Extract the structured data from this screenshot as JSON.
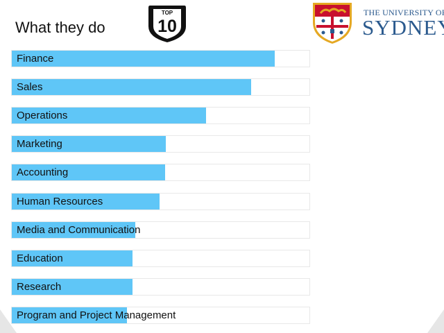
{
  "header": {
    "title": "What they do",
    "badge_top": "TOP",
    "badge_number": "10"
  },
  "logo": {
    "line1": "THE UNIVERSITY OF",
    "line2": "SYDNEY"
  },
  "colors": {
    "bar_fill": "#5fc6f7",
    "track_border": "#e8e8e8",
    "brand_blue": "#2b5a8e",
    "crest_red": "#c8102e",
    "crest_gold": "#e5a823"
  },
  "chart_data": {
    "type": "bar",
    "orientation": "horizontal",
    "title": "What they do",
    "xlim": [
      0,
      100
    ],
    "categories": [
      "Finance",
      "Sales",
      "Operations",
      "Marketing",
      "Accounting",
      "Human Resources",
      "Media and Communication",
      "Education",
      "Research",
      "Program and Project Management"
    ],
    "values": [
      88.3,
      80.5,
      65.3,
      51.8,
      51.5,
      49.6,
      41.6,
      40.6,
      40.5,
      38.8
    ]
  }
}
